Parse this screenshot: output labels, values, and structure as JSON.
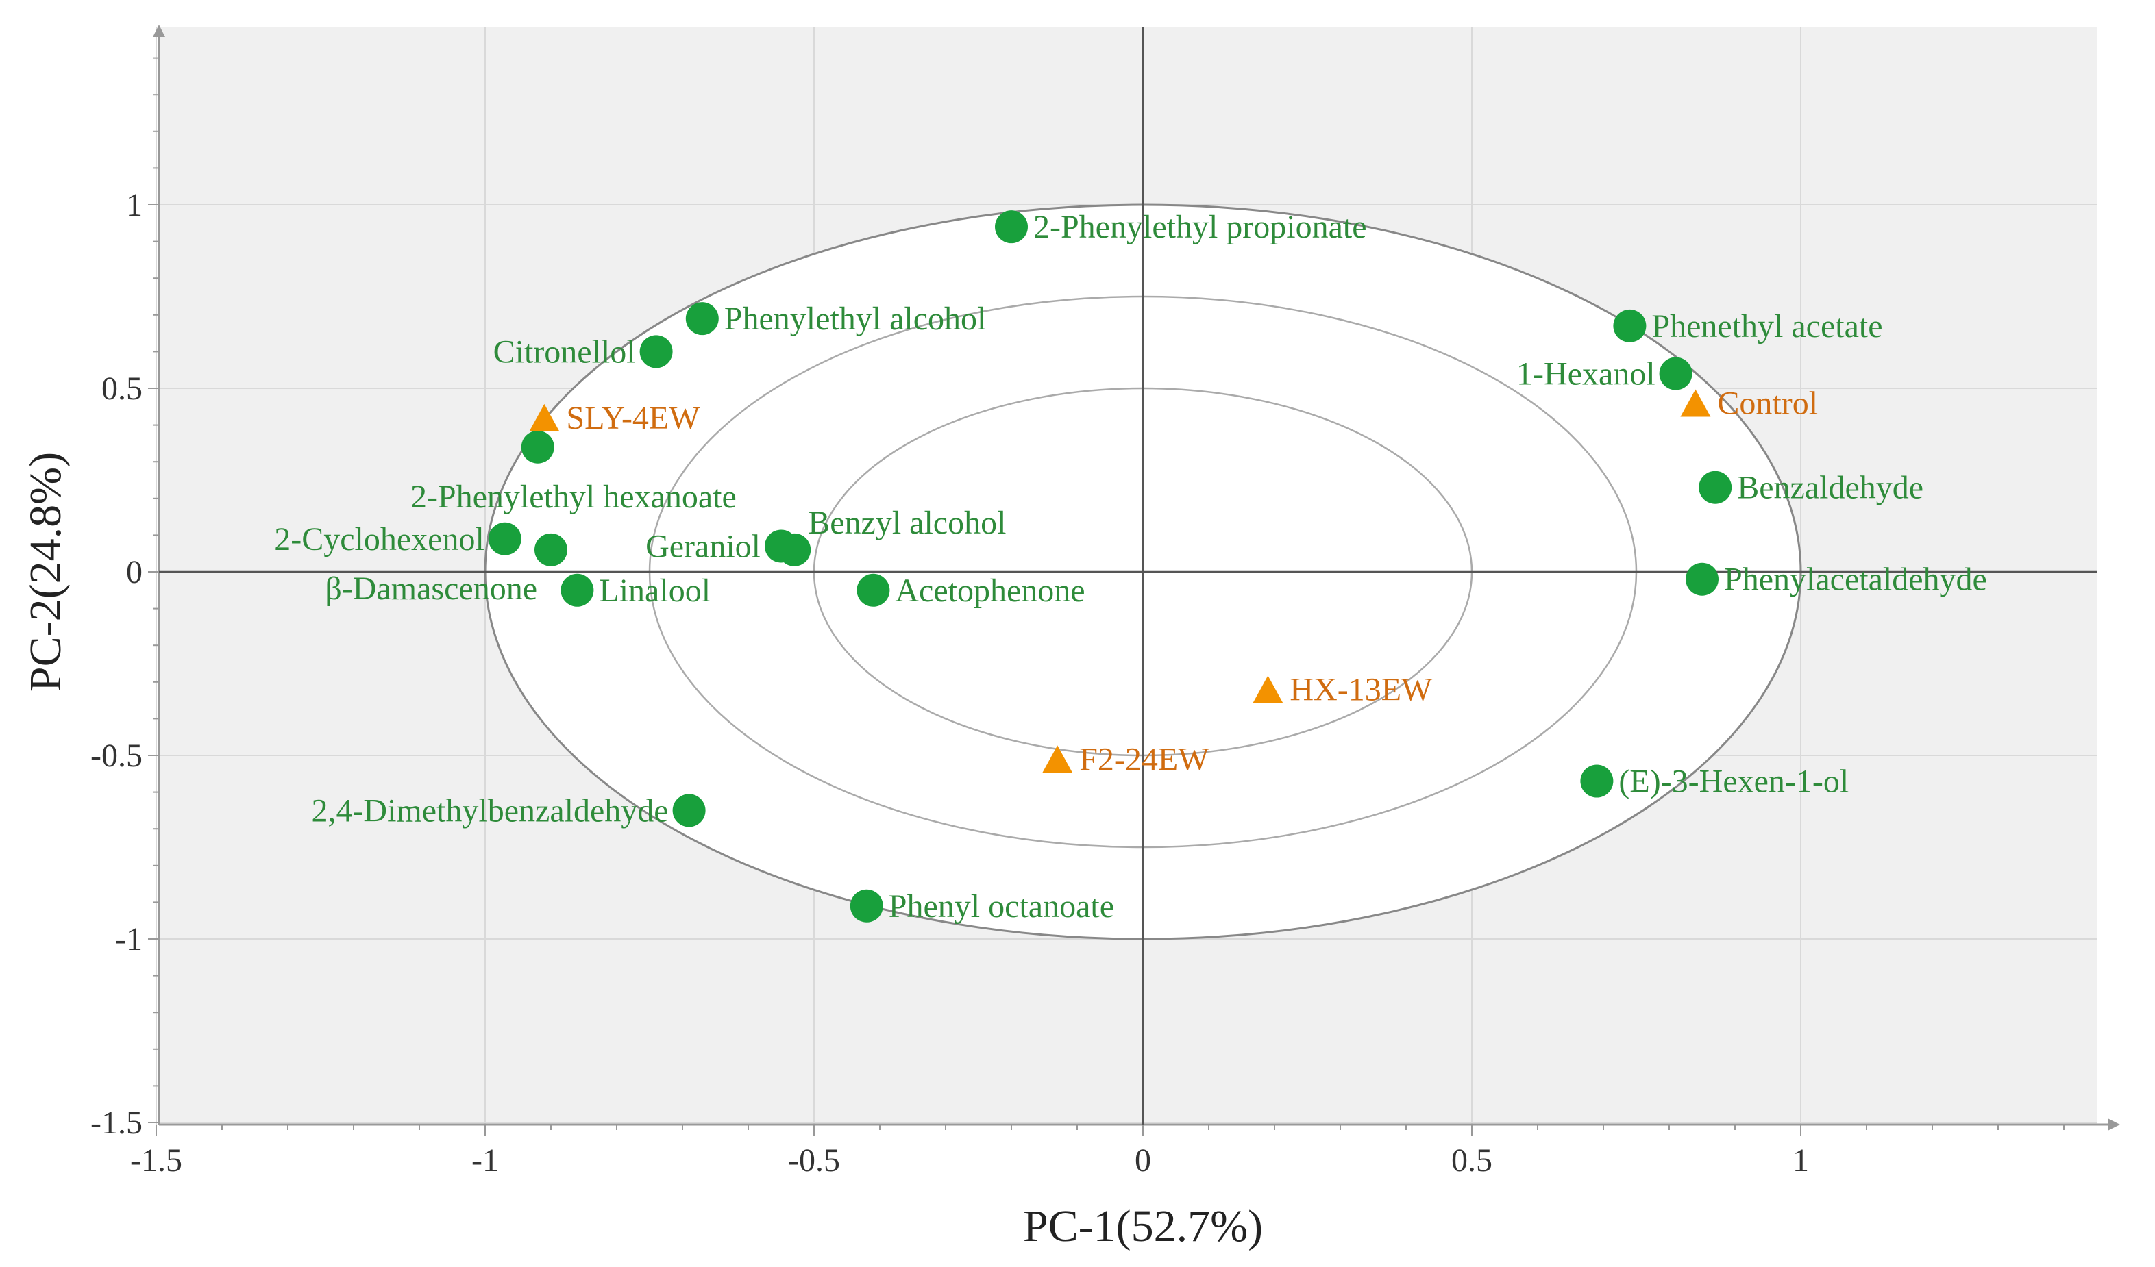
{
  "chart_data": {
    "type": "scatter",
    "title": "",
    "xlabel": "PC-1(52.7%)",
    "ylabel": "PC-2(24.8%)",
    "xlim": [
      -1.5,
      1.5
    ],
    "ylim": [
      -1.5,
      1.5
    ],
    "xticks": [
      -1.5,
      -1,
      -0.5,
      0,
      0.5,
      1
    ],
    "xtick_labels": [
      "-1.5",
      "-1",
      "-0.5",
      "0",
      "0.5",
      "1"
    ],
    "yticks": [
      -1.5,
      -1,
      -0.5,
      0,
      0.5,
      1
    ],
    "ytick_labels": [
      "-1.5",
      "-1",
      "-0.5",
      "0",
      "0.5",
      "1"
    ],
    "grid": true,
    "ellipses": [
      {
        "rx": 1.0,
        "ry": 1.0,
        "color": "#888888"
      },
      {
        "rx": 0.75,
        "ry": 0.75,
        "color": "#aaaaaa"
      },
      {
        "rx": 0.5,
        "ry": 0.5,
        "color": "#aaaaaa"
      }
    ],
    "colors": {
      "compound": "#18a03c",
      "compound_label": "#2e8b3a",
      "sample": "#f39200",
      "sample_label": "#d06c10",
      "grid": "#d9d9d9",
      "axis": "#999999",
      "frame_bg": "#f0f0f0"
    },
    "series": [
      {
        "name": "Volatile compounds",
        "marker": "circle",
        "points": [
          {
            "label": "2-Phenylethyl propionate",
            "x": -0.2,
            "y": 0.94,
            "anchor": "right"
          },
          {
            "label": "Phenylethyl alcohol",
            "x": -0.67,
            "y": 0.69,
            "anchor": "right"
          },
          {
            "label": "Citronellol",
            "x": -0.74,
            "y": 0.6,
            "anchor": "left"
          },
          {
            "label": "2-Phenylethyl hexanoate",
            "x": -0.92,
            "y": 0.34,
            "anchor": "below-right"
          },
          {
            "label": "2-Cyclohexenol",
            "x": -0.97,
            "y": 0.09,
            "anchor": "left"
          },
          {
            "label": "β-Damascenone",
            "x": -0.9,
            "y": 0.06,
            "anchor": "lower-left"
          },
          {
            "label": "Linalool",
            "x": -0.86,
            "y": -0.05,
            "anchor": "right"
          },
          {
            "label": "Geraniol",
            "x": -0.55,
            "y": 0.07,
            "anchor": "left"
          },
          {
            "label": "Benzyl alcohol",
            "x": -0.53,
            "y": 0.06,
            "anchor": "upper-right"
          },
          {
            "label": "Acetophenone",
            "x": -0.41,
            "y": -0.05,
            "anchor": "right"
          },
          {
            "label": "2,4-Dimethylbenzaldehyde",
            "x": -0.69,
            "y": -0.65,
            "anchor": "left"
          },
          {
            "label": "Phenyl octanoate",
            "x": -0.42,
            "y": -0.91,
            "anchor": "right"
          },
          {
            "label": "Phenethyl acetate",
            "x": 0.74,
            "y": 0.67,
            "anchor": "right"
          },
          {
            "label": "1-Hexanol",
            "x": 0.81,
            "y": 0.54,
            "anchor": "left"
          },
          {
            "label": "Benzaldehyde",
            "x": 0.87,
            "y": 0.23,
            "anchor": "right"
          },
          {
            "label": "Phenylacetaldehyde",
            "x": 0.85,
            "y": -0.02,
            "anchor": "right"
          },
          {
            "label": "(E)-3-Hexen-1-ol",
            "x": 0.69,
            "y": -0.57,
            "anchor": "right"
          }
        ]
      },
      {
        "name": "Samples",
        "marker": "triangle",
        "points": [
          {
            "label": "SLY-4EW",
            "x": -0.91,
            "y": 0.42,
            "anchor": "right"
          },
          {
            "label": "Control",
            "x": 0.84,
            "y": 0.46,
            "anchor": "right"
          },
          {
            "label": "HX-13EW",
            "x": 0.19,
            "y": -0.32,
            "anchor": "right"
          },
          {
            "label": "F2-24EW",
            "x": -0.13,
            "y": -0.51,
            "anchor": "right"
          }
        ]
      }
    ]
  }
}
